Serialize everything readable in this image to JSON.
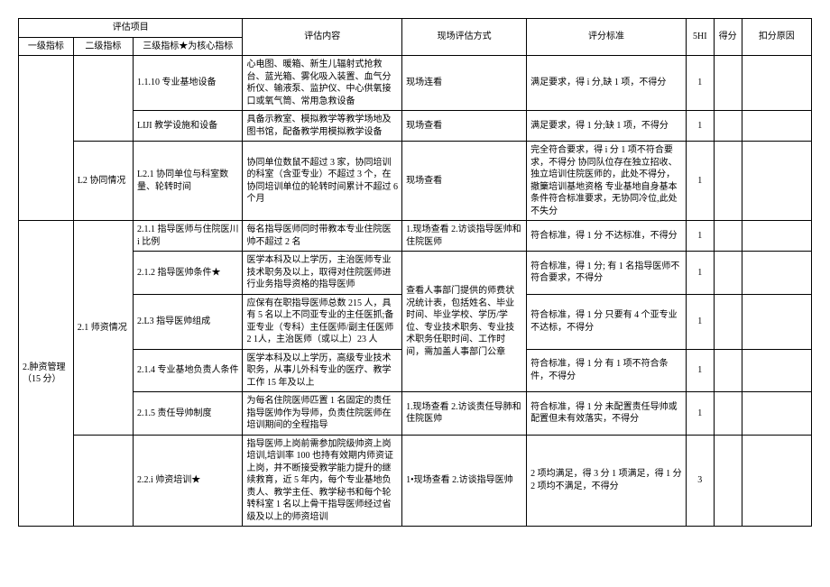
{
  "headers": {
    "eval_project": "评估项目",
    "lv1": "一级指标",
    "lv2": "二级指标",
    "lv3": "三级指标★为核心指标",
    "content": "评估内容",
    "method": "现场评估方式",
    "standard": "评分标准",
    "c5hi": "5HI",
    "score": "得分",
    "reason": "扣分原因"
  },
  "rows": [
    {
      "lv1": "",
      "lv2": "",
      "lv3": "1.1.10 专业基地设备",
      "content": "心电图、暖箱、新生儿辐射式抢救台、蓝光箱、雾化吸入装置、血气分析仪、输液泵、监护仪、中心供氧接口或氧气筒、常用急救设备",
      "method": "现场连看",
      "standard": "满足要求，得 i 分,缺 1 项，不得分",
      "c5hi": "1"
    },
    {
      "lv3": "LIJI 教学设施和设备",
      "content": "具备示教室、模拟教学等教学场地及图书馆，配备教学用模拟教学设备",
      "method": "现场查看",
      "standard": "满足要求，得 1 分;缺 1 项，不得分",
      "c5hi": "1"
    },
    {
      "lv2": "L2 协同情况",
      "lv3": "L2.1 协同单位与科室数量、轮转时间",
      "content": "协同单位数鼠不超过 3 家，协同培训的科室（含亚专业）不超过 3 个，在协同培训单位的轮转时间累计不超过 6 个月",
      "method": "现场查看",
      "standard": "完全符合要求，得 i 分\n1 项不符合要求，不得分\n协同队位存在独立招收、独立培训住院医师的，此处不得分，撤篥培训基地资格\n专业基地自身基本条件符合标准要求，无协同冷位,此处不失分",
      "c5hi": "1"
    },
    {
      "lv1": "2.肿资管理（15 分）",
      "lv2": "2.1 师资情况",
      "lv3": "2.1.1 指导医师与住院医川 i 比例",
      "content": "每名指导医师同时带教本专业住院医帅不超过 2 名",
      "method": "1.现场查看\n2.访谈指导医帅和住院医师",
      "standard": "符合标准，得 1 分 不达标准，不得分",
      "c5hi": "1"
    },
    {
      "lv3": "2.1.2 指导医帅条件★",
      "content": "医学本科及以上学历，主治医师专业技术职务及以上，取得对住院医师进行业务指导资格的指导医师",
      "method_rowspan3": "查看人事部门提供的师费状况统计表，包括姓名、毕业时间、毕业学校、学历/学位、专业技术职务、专业技术职务任职时间、工作时间，需加盖人事部门公章",
      "standard": "符合标准，得 1 分;\n有 1 名指导医师不符合要求，不得分",
      "c5hi": "1"
    },
    {
      "lv3": "2.L3 指导医帅组成",
      "content": "应保有在职指导医师总数 215 人，具有 5 名以上不同亚专业的主任医抓;备亚专业（专科）主任医师/副主任医师 2\n1人，主治医师（或以上）23 人",
      "standard": "符合标准，得 1 分\n只要有 4 个亚专业不达标，不得分",
      "c5hi": "1"
    },
    {
      "lv3": "2.1.4 专业基地负责人条件",
      "content": "医学本科及以上学历，高级专业技术职务，从事儿外科专业的医疗、教学工作 15 年及以上",
      "standard": "符合标准，得 1 分\n有 1 项不符合条件，不得分",
      "c5hi": "1"
    },
    {
      "lv3": "2.1.5 责任导帅制度",
      "content": "为每名住院医师匹置 1 名固定的责任指导医帅作为导师，负责住院医师在培训期间的全程指导",
      "method": "1.现场查看\n2.访谈责任导肺和住院医帅",
      "standard": "符合标准，得 1 分\n未配置责任导帅或配置但未有效落实，不得分",
      "c5hi": "1"
    },
    {
      "lv2": "",
      "lv3": "2.2.i 帅资培训★",
      "content": "指导医师上岗前需参加院级帅资上岗培训,培训率 100 也持有效期内师资证上岗，并不断接受教学能力提升的继续救育，近 5 年内，每个专业基地负责人、教学主任、教学秘书和每个轮转科室 1 名以上骨干指导医师经过省级及以上的师资培训",
      "method": "1•现场查看\n2.访谈指导医帅",
      "standard": "2 项均满足，得 3 分\n1 项满足，得 1 分\n2 项均不满足，不得分",
      "c5hi": "3"
    }
  ]
}
